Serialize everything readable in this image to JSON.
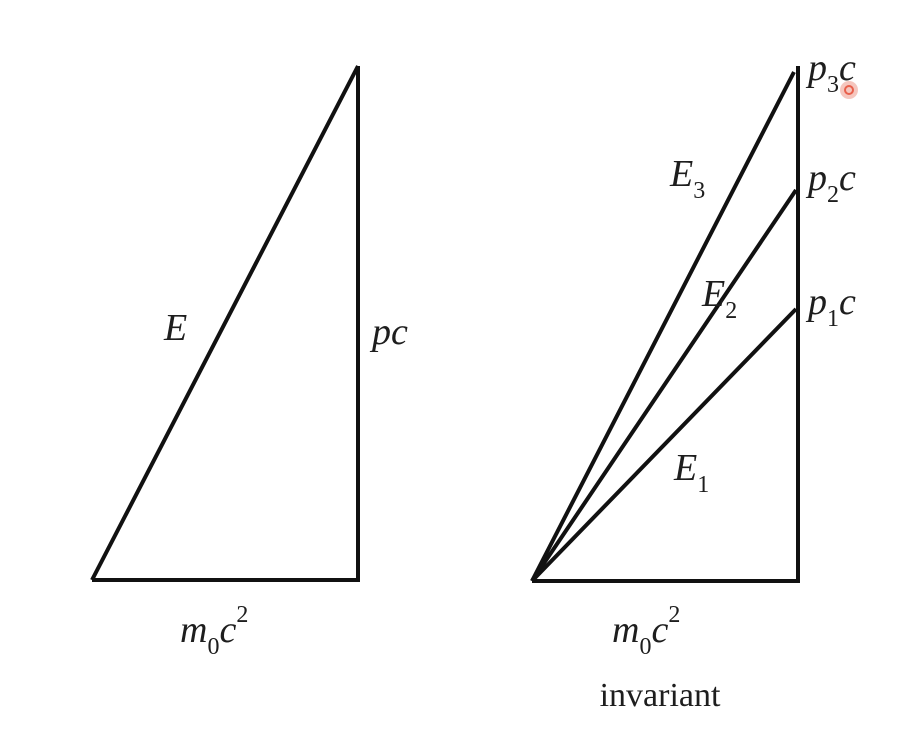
{
  "left_triangle": {
    "hypotenuse": {
      "main": "E",
      "sub": ""
    },
    "vertical": {
      "main": "pc"
    },
    "base": {
      "m": "m",
      "sub": "0",
      "c": "c",
      "sup": "2"
    }
  },
  "right_triangle": {
    "hypotenuses": [
      {
        "main": "E",
        "sub": "3"
      },
      {
        "main": "E",
        "sub": "2"
      },
      {
        "main": "E",
        "sub": "1"
      }
    ],
    "verticals": [
      {
        "p": "p",
        "sub": "3",
        "c": "c"
      },
      {
        "p": "p",
        "sub": "2",
        "c": "c"
      },
      {
        "p": "p",
        "sub": "1",
        "c": "c"
      }
    ],
    "base": {
      "m": "m",
      "sub": "0",
      "c": "c",
      "sup": "2"
    },
    "caption": "invariant"
  },
  "colors": {
    "line": "#111111",
    "text": "#1e1e1e",
    "cursor": "#e8604c"
  }
}
